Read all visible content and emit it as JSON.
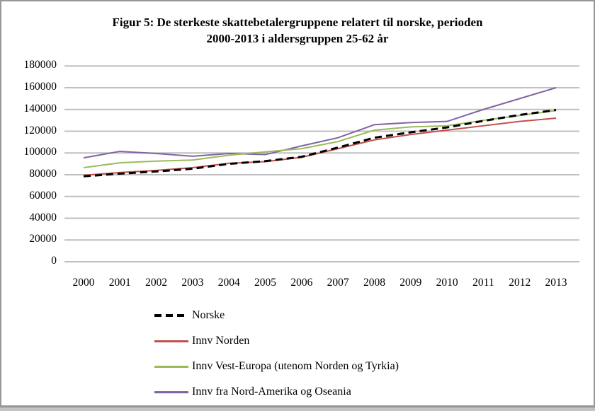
{
  "figure": {
    "title_line1": "Figur 5: De sterkeste skattebetalergruppene relatert til norske, perioden",
    "title_line2": "2000-2013 i aldersgruppen 25-62 år"
  },
  "chart_data": {
    "type": "line",
    "title": "Figur 5: De sterkeste skattebetalergruppene relatert til norske, perioden 2000-2013 i aldersgruppen 25-62 år",
    "categories": [
      2000,
      2001,
      2002,
      2003,
      2004,
      2005,
      2006,
      2007,
      2008,
      2009,
      2010,
      2011,
      2012,
      2013
    ],
    "series": [
      {
        "name": "Norske",
        "color": "#000000",
        "dash": true,
        "values": [
          78500,
          81000,
          83000,
          85500,
          90000,
          92500,
          96500,
          105000,
          114000,
          119000,
          123500,
          129500,
          135000,
          139500
        ]
      },
      {
        "name": "Innv Norden",
        "color": "#C0504D",
        "dash": false,
        "values": [
          79500,
          82000,
          84000,
          86500,
          90500,
          92000,
          96000,
          104000,
          112000,
          117000,
          121000,
          125000,
          129000,
          132000
        ]
      },
      {
        "name": "Innv Vest-Europa (utenom Norden og Tyrkia)",
        "color": "#9BBB59",
        "dash": false,
        "values": [
          86500,
          91000,
          92500,
          93500,
          98000,
          101000,
          104000,
          110500,
          121000,
          124000,
          125000,
          130000,
          134500,
          139000
        ]
      },
      {
        "name": "Innv fra Nord-Amerika og Oseania",
        "color": "#8064A2",
        "dash": false,
        "values": [
          95500,
          101500,
          99500,
          97000,
          99500,
          98500,
          106500,
          114000,
          126000,
          128000,
          129000,
          140000,
          150000,
          160000
        ]
      }
    ],
    "xlabel": "",
    "ylabel": "",
    "ylim": [
      0,
      180000
    ],
    "y_ticks": [
      0,
      20000,
      40000,
      60000,
      80000,
      100000,
      120000,
      140000,
      160000,
      180000
    ],
    "grid": true,
    "gridline_color": "#BFBFBF",
    "legend_position": "bottom-left-stacked"
  }
}
